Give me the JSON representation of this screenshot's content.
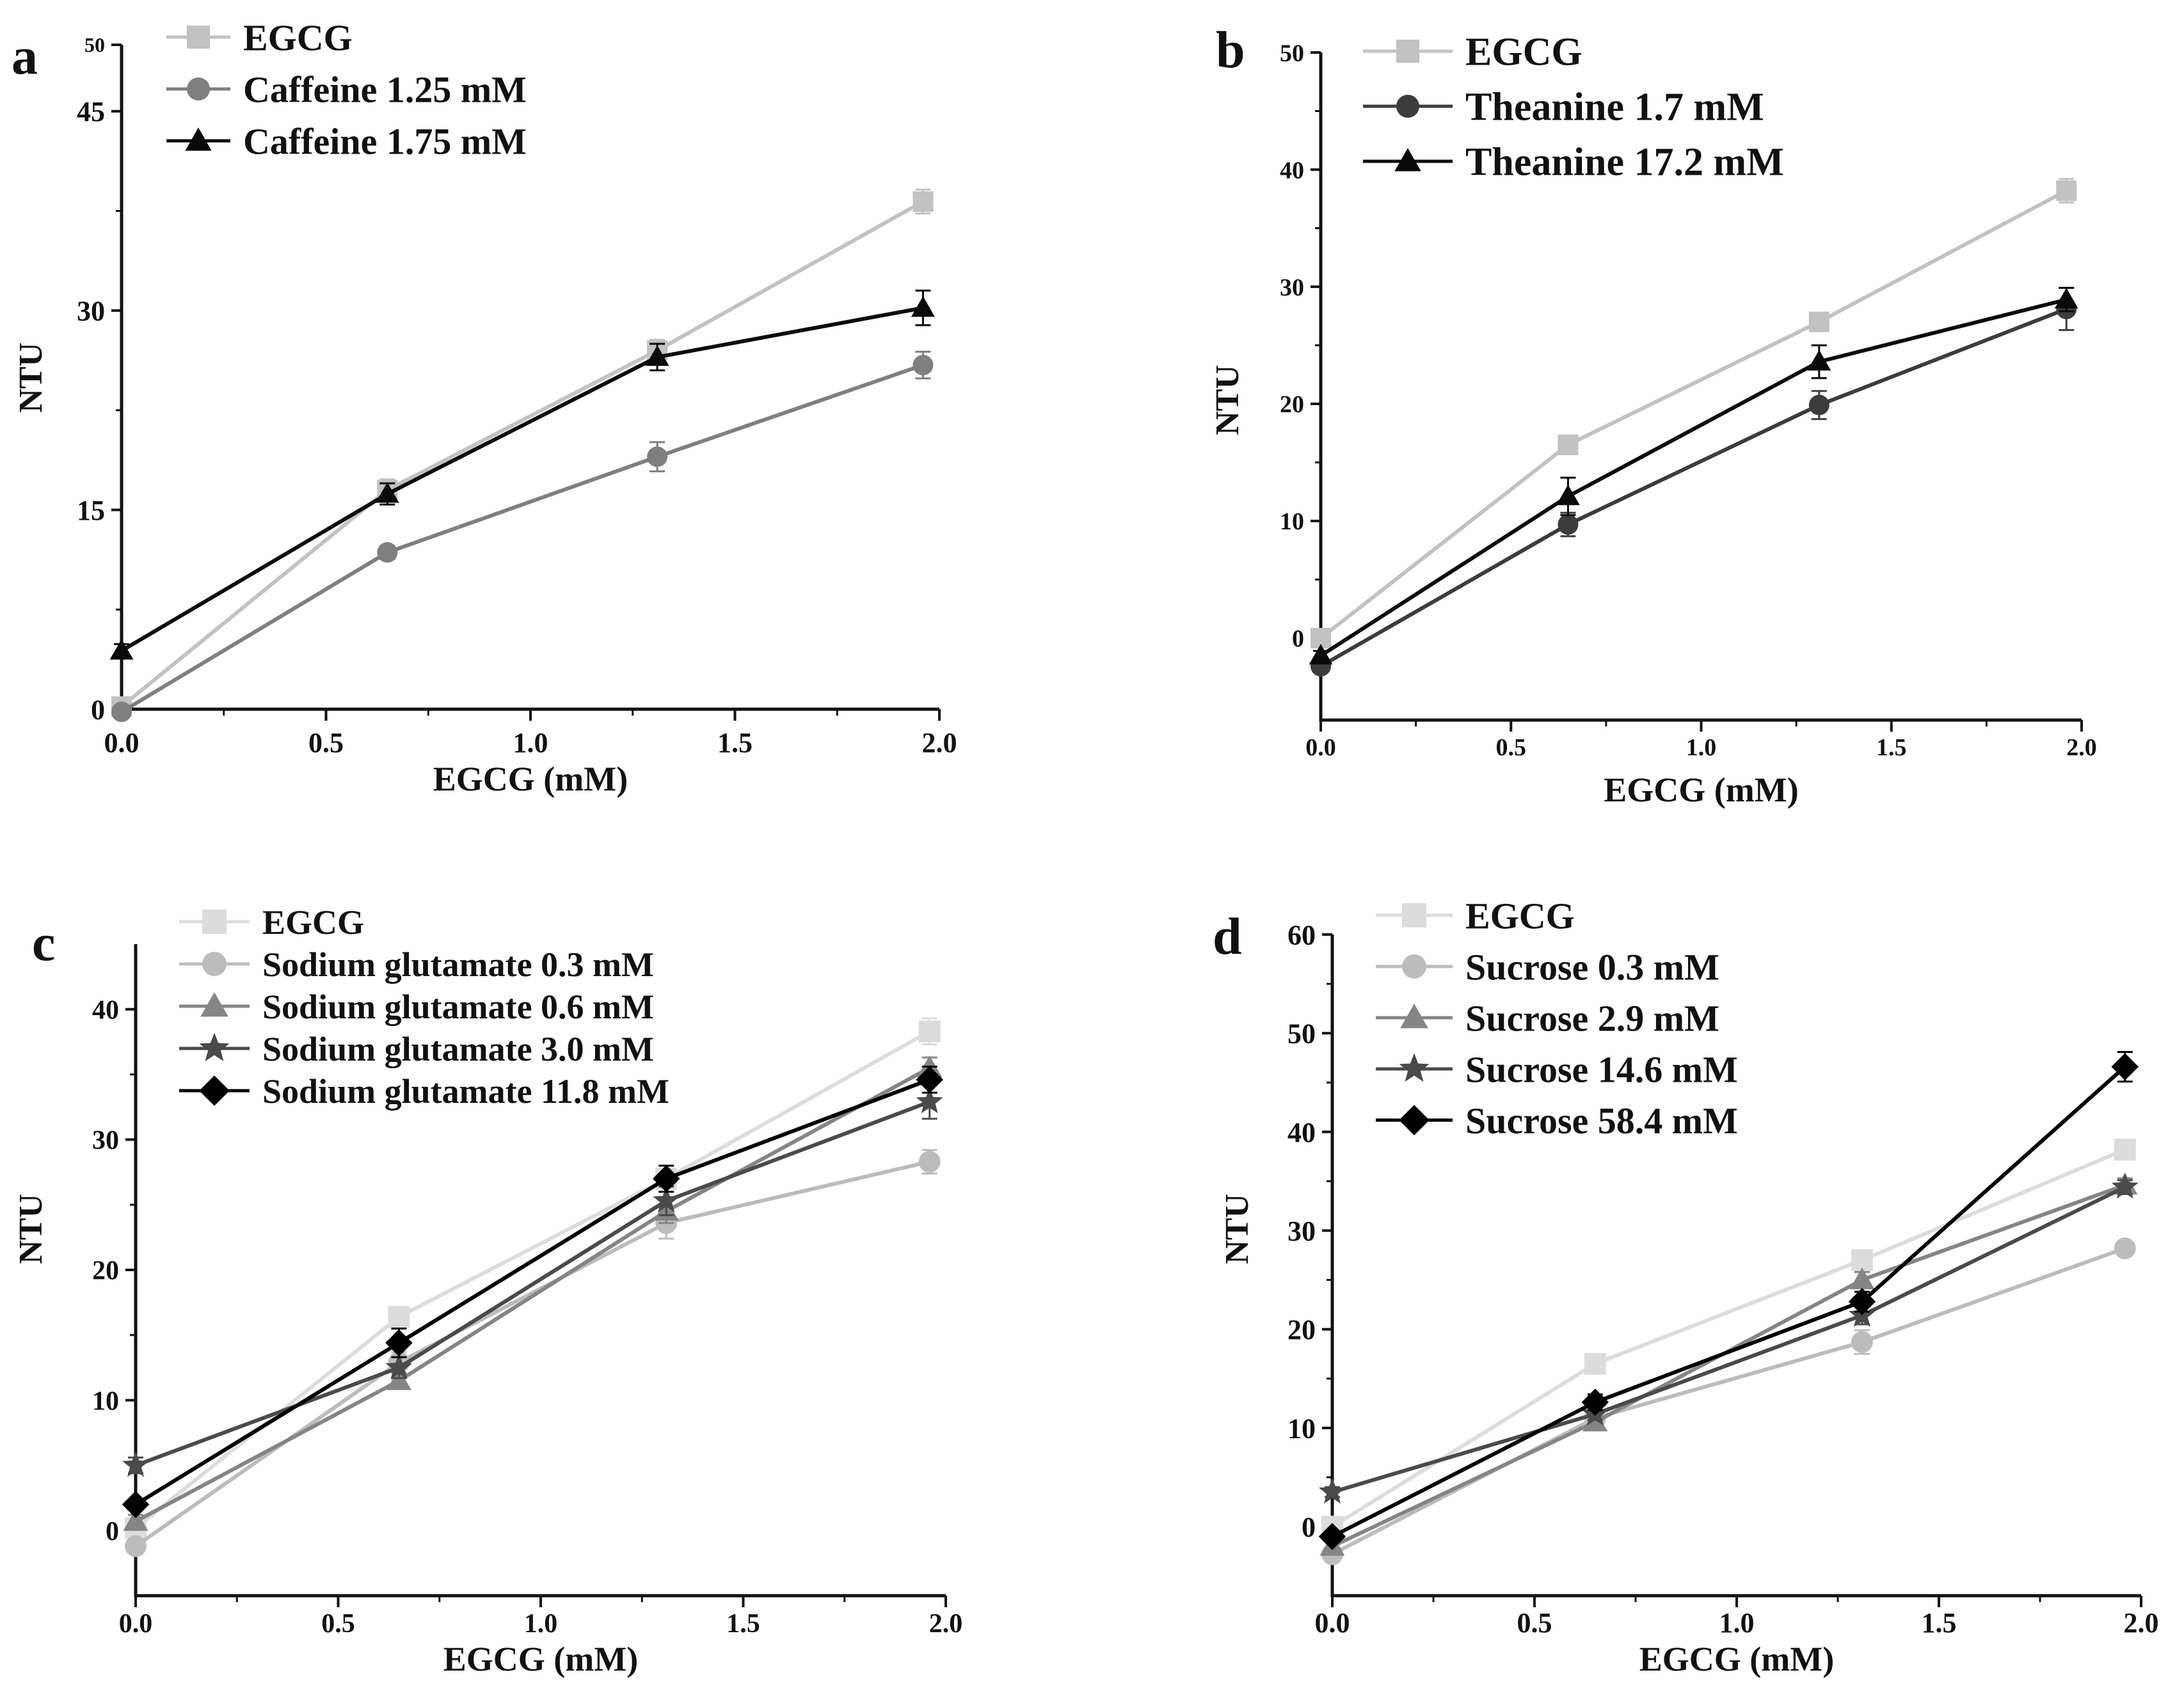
{
  "figure": {
    "x_values": [
      0.0,
      0.65,
      1.31,
      1.96
    ],
    "xlabel": "EGCG (mM)",
    "ylabel": "NTU"
  },
  "styles": {
    "EGCG": {
      "color": "#c2c2c2",
      "marker": "square"
    },
    "Caffeine 1.25 mM": {
      "color": "#7f7f7f",
      "marker": "circle"
    },
    "Caffeine 1.75 mM": {
      "color": "#0a0a0a",
      "marker": "triangle"
    },
    "Theanine 1.7 mM": {
      "color": "#3c3c3c",
      "marker": "circle"
    },
    "Theanine 17.2 mM": {
      "color": "#0a0a0a",
      "marker": "triangle"
    }
  },
  "chart_data": [
    {
      "panel": "a",
      "type": "line",
      "xlabel": "EGCG (mM)",
      "ylabel": "NTU",
      "xlim": [
        0,
        2
      ],
      "ylim": [
        0,
        50
      ],
      "xticks": [
        "0.0",
        "0.5",
        "1.0",
        "1.5",
        "2.0"
      ],
      "yticks": [
        0,
        15,
        30,
        45,
        50
      ],
      "legend": "top-left",
      "x": [
        0.0,
        0.65,
        1.31,
        1.96
      ],
      "series": [
        {
          "name": "EGCG",
          "color": "#c2c2c2",
          "marker": "square",
          "values": [
            0.2,
            16.5,
            27.0,
            38.2
          ],
          "errors": [
            0.3,
            0.8,
            0.8,
            0.9
          ]
        },
        {
          "name": "Caffeine 1.25 mM",
          "color": "#7f7f7f",
          "marker": "circle",
          "values": [
            -0.2,
            11.8,
            19.0,
            25.9
          ],
          "errors": [
            0.3,
            0.5,
            1.1,
            1.0
          ]
        },
        {
          "name": "Caffeine 1.75 mM",
          "color": "#0a0a0a",
          "marker": "triangle",
          "values": [
            4.4,
            16.2,
            26.5,
            30.2
          ],
          "errors": [
            0.5,
            0.8,
            1.0,
            1.3
          ]
        }
      ]
    },
    {
      "panel": "b",
      "type": "line",
      "xlabel": "EGCG (mM)",
      "ylabel": "NTU",
      "xlim": [
        0,
        2
      ],
      "ylim": [
        -7,
        50
      ],
      "xticks": [
        "0.0",
        "0.5",
        "1.0",
        "1.5",
        "2.0"
      ],
      "yticks": [
        0,
        10,
        20,
        30,
        40,
        50
      ],
      "legend": "top-left",
      "x": [
        0.0,
        0.65,
        1.31,
        1.96
      ],
      "series": [
        {
          "name": "EGCG",
          "color": "#c2c2c2",
          "marker": "square",
          "values": [
            0.0,
            16.5,
            27.0,
            38.2
          ],
          "errors": [
            0.3,
            0.4,
            0.5,
            1.0
          ]
        },
        {
          "name": "Theanine 1.7 mM",
          "color": "#3c3c3c",
          "marker": "circle",
          "values": [
            -2.4,
            9.7,
            19.9,
            28.1
          ],
          "errors": [
            0.4,
            1.0,
            1.2,
            1.8
          ]
        },
        {
          "name": "Theanine 17.2 mM",
          "color": "#0a0a0a",
          "marker": "triangle",
          "values": [
            -1.5,
            12.1,
            23.6,
            28.9
          ],
          "errors": [
            0.4,
            1.6,
            1.4,
            1.0
          ]
        }
      ]
    },
    {
      "panel": "c",
      "type": "line",
      "xlabel": "EGCG (mM)",
      "ylabel": "NTU",
      "xlim": [
        0,
        2
      ],
      "ylim": [
        -5,
        45
      ],
      "xticks": [
        "0.0",
        "0.5",
        "1.0",
        "1.5",
        "2.0"
      ],
      "yticks": [
        0,
        10,
        20,
        30,
        40
      ],
      "legend": "top-left",
      "x": [
        0.0,
        0.65,
        1.31,
        1.96
      ],
      "series": [
        {
          "name": "EGCG",
          "color": "#dcdcdc",
          "marker": "square",
          "values": [
            0.2,
            16.4,
            27.0,
            38.3
          ],
          "errors": [
            0.3,
            0.5,
            0.6,
            1.0
          ]
        },
        {
          "name": "Sodium glutamate 0.3 mM",
          "color": "#bcbcbc",
          "marker": "circle",
          "values": [
            -1.2,
            12.9,
            23.6,
            28.3
          ],
          "errors": [
            0.4,
            0.8,
            1.2,
            0.9
          ]
        },
        {
          "name": "Sodium glutamate 0.6 mM",
          "color": "#858585",
          "marker": "triangle",
          "values": [
            0.7,
            11.5,
            24.5,
            35.5
          ],
          "errors": [
            0.5,
            0.6,
            0.9,
            0.8
          ]
        },
        {
          "name": "Sodium glutamate 3.0 mM",
          "color": "#4a4a4a",
          "marker": "star",
          "values": [
            5.0,
            12.5,
            25.3,
            32.9
          ],
          "errors": [
            0.6,
            0.8,
            1.1,
            1.3
          ]
        },
        {
          "name": "Sodium glutamate 11.8 mM",
          "color": "#000000",
          "marker": "diamond",
          "values": [
            2.0,
            14.4,
            27.0,
            34.6
          ],
          "errors": [
            0.3,
            1.1,
            1.0,
            1.0
          ]
        }
      ]
    },
    {
      "panel": "d",
      "type": "line",
      "xlabel": "EGCG (mM)",
      "ylabel": "NTU",
      "xlim": [
        0,
        2
      ],
      "ylim": [
        -7,
        60
      ],
      "xticks": [
        "0.0",
        "0.5",
        "1.0",
        "1.5",
        "2.0"
      ],
      "yticks": [
        0,
        10,
        20,
        30,
        40,
        50,
        60
      ],
      "legend": "top-left",
      "x": [
        0.0,
        0.65,
        1.31,
        1.96
      ],
      "series": [
        {
          "name": "EGCG",
          "color": "#dcdcdc",
          "marker": "square",
          "values": [
            0.0,
            16.5,
            27.0,
            38.2
          ],
          "errors": [
            0.3,
            0.5,
            0.6,
            1.0
          ]
        },
        {
          "name": "Sucrose 0.3 mM",
          "color": "#bcbcbc",
          "marker": "circle",
          "values": [
            -2.8,
            11.0,
            18.7,
            28.2
          ],
          "errors": [
            0.4,
            0.6,
            1.2,
            0.7
          ]
        },
        {
          "name": "Sucrose 2.9 mM",
          "color": "#858585",
          "marker": "triangle",
          "values": [
            -2.0,
            10.6,
            25.0,
            34.6
          ],
          "errors": [
            0.4,
            0.6,
            0.8,
            0.7
          ]
        },
        {
          "name": "Sucrose 14.6 mM",
          "color": "#4a4a4a",
          "marker": "star",
          "values": [
            3.5,
            11.4,
            21.4,
            34.4
          ],
          "errors": [
            0.5,
            0.6,
            0.9,
            0.7
          ]
        },
        {
          "name": "Sucrose 58.4 mM",
          "color": "#000000",
          "marker": "diamond",
          "values": [
            -1.0,
            12.6,
            22.8,
            46.6
          ],
          "errors": [
            0.4,
            0.8,
            1.0,
            1.5
          ]
        }
      ]
    }
  ]
}
